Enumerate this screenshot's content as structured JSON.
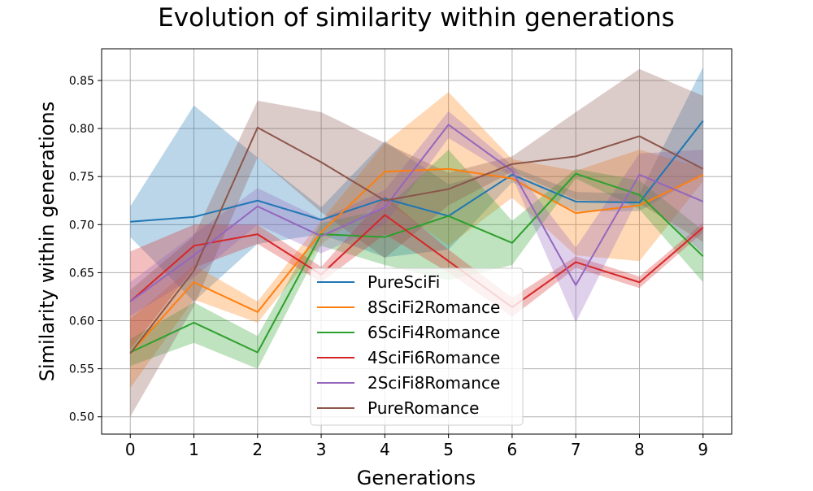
{
  "chart_data": {
    "type": "line",
    "title": "Evolution of similarity within generations",
    "xlabel": "Generations",
    "ylabel": "Similarity within generations",
    "x": [
      0,
      1,
      2,
      3,
      4,
      5,
      6,
      7,
      8,
      9
    ],
    "xlim": [
      -0.45,
      9.45
    ],
    "ylim": [
      0.482,
      0.883
    ],
    "yticks": [
      0.5,
      0.55,
      0.6,
      0.65,
      0.7,
      0.75,
      0.8,
      0.85
    ],
    "ytick_labels": [
      "0.50",
      "0.55",
      "0.60",
      "0.65",
      "0.70",
      "0.75",
      "0.80",
      "0.85"
    ],
    "xtick_labels": [
      "0",
      "1",
      "2",
      "3",
      "4",
      "5",
      "6",
      "7",
      "8",
      "9"
    ],
    "grid": true,
    "legend_position": "lower-center",
    "series": [
      {
        "name": "PureSciFi",
        "color": "#1f77b4",
        "values": [
          0.703,
          0.708,
          0.725,
          0.705,
          0.727,
          0.709,
          0.752,
          0.724,
          0.723,
          0.808
        ],
        "lower": [
          0.687,
          0.62,
          0.68,
          0.69,
          0.666,
          0.674,
          0.744,
          0.714,
          0.714,
          0.753
        ],
        "upper": [
          0.719,
          0.824,
          0.77,
          0.718,
          0.787,
          0.742,
          0.76,
          0.734,
          0.732,
          0.864
        ]
      },
      {
        "name": "8SciFi2Romance",
        "color": "#ff7f0e",
        "values": [
          0.566,
          0.64,
          0.609,
          0.692,
          0.755,
          0.758,
          0.748,
          0.712,
          0.72,
          0.752
        ],
        "lower": [
          0.53,
          0.622,
          0.598,
          0.68,
          0.725,
          0.678,
          0.728,
          0.668,
          0.662,
          0.745
        ],
        "upper": [
          0.602,
          0.658,
          0.62,
          0.704,
          0.785,
          0.838,
          0.768,
          0.756,
          0.778,
          0.759
        ]
      },
      {
        "name": "6SciFi4Romance",
        "color": "#2ca02c",
        "values": [
          0.567,
          0.598,
          0.567,
          0.69,
          0.687,
          0.709,
          0.681,
          0.753,
          0.731,
          0.667
        ],
        "lower": [
          0.553,
          0.577,
          0.55,
          0.678,
          0.658,
          0.642,
          0.658,
          0.748,
          0.716,
          0.64
        ],
        "upper": [
          0.581,
          0.619,
          0.584,
          0.702,
          0.716,
          0.778,
          0.704,
          0.758,
          0.746,
          0.694
        ]
      },
      {
        "name": "4SciFi6Romance",
        "color": "#d62728",
        "values": [
          0.62,
          0.678,
          0.69,
          0.648,
          0.71,
          0.662,
          0.614,
          0.661,
          0.64,
          0.697
        ],
        "lower": [
          0.57,
          0.655,
          0.68,
          0.64,
          0.69,
          0.65,
          0.604,
          0.655,
          0.634,
          0.692
        ],
        "upper": [
          0.672,
          0.7,
          0.7,
          0.656,
          0.73,
          0.674,
          0.624,
          0.667,
          0.646,
          0.702
        ]
      },
      {
        "name": "2SciFi8Romance",
        "color": "#9467bd",
        "values": [
          0.62,
          0.668,
          0.719,
          0.688,
          0.718,
          0.804,
          0.756,
          0.637,
          0.752,
          0.724
        ],
        "lower": [
          0.605,
          0.645,
          0.7,
          0.67,
          0.7,
          0.79,
          0.75,
          0.598,
          0.73,
          0.67
        ],
        "upper": [
          0.64,
          0.69,
          0.738,
          0.706,
          0.736,
          0.818,
          0.762,
          0.676,
          0.774,
          0.778
        ]
      },
      {
        "name": "PureRomance",
        "color": "#8c564b",
        "values": [
          0.566,
          0.652,
          0.801,
          0.765,
          0.725,
          0.737,
          0.763,
          0.771,
          0.792,
          0.758
        ],
        "lower": [
          0.5,
          0.615,
          0.77,
          0.713,
          0.665,
          0.72,
          0.755,
          0.726,
          0.722,
          0.682
        ],
        "upper": [
          0.632,
          0.688,
          0.829,
          0.817,
          0.785,
          0.754,
          0.771,
          0.817,
          0.862,
          0.834
        ]
      }
    ]
  }
}
